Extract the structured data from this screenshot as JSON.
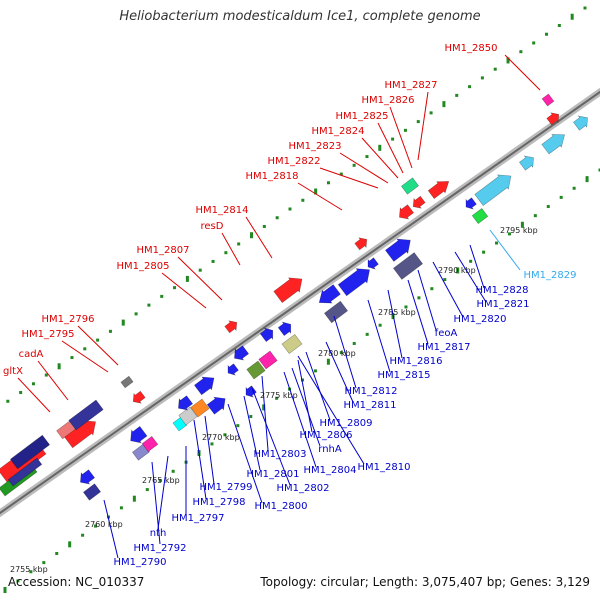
{
  "title": "Heliobacterium modesticaldum Ice1, complete genome",
  "footer": {
    "accession": "Accession: NC_010337",
    "summary": "Topology: circular; Length: 3,075,407 bp; Genes: 3,129"
  },
  "colors": {
    "top_label": "#dd0000",
    "bottom_label": "#0000cc",
    "highlight_label": "#33aaee",
    "backbone": "#999999",
    "tick": "#228822"
  },
  "kbp_labels": [
    "2755 kbp",
    "2760 kbp",
    "2765 kbp",
    "2770 kbp",
    "2775 kbp",
    "2780 kbp",
    "2785 kbp",
    "2790 kbp",
    "2795 kbp"
  ],
  "top_labels": [
    "HM1_2850",
    "HM1_2827",
    "HM1_2826",
    "HM1_2825",
    "HM1_2824",
    "HM1_2823",
    "HM1_2822",
    "HM1_2818",
    "HM1_2814",
    "resD",
    "HM1_2807",
    "HM1_2805",
    "HM1_2796",
    "HM1_2795",
    "cadA",
    "gltX"
  ],
  "bottom_labels": [
    "HM1_2829",
    "HM1_2828",
    "HM1_2821",
    "HM1_2820",
    "feoA",
    "HM1_2817",
    "HM1_2816",
    "HM1_2815",
    "HM1_2812",
    "HM1_2811",
    "HM1_2809",
    "HM1_2806",
    "rnhA",
    "HM1_2810",
    "HM1_2804",
    "HM1_2803",
    "HM1_2802",
    "HM1_2801",
    "HM1_2800",
    "HM1_2799",
    "HM1_2798",
    "HM1_2797",
    "nth",
    "HM1_2792",
    "HM1_2790"
  ]
}
